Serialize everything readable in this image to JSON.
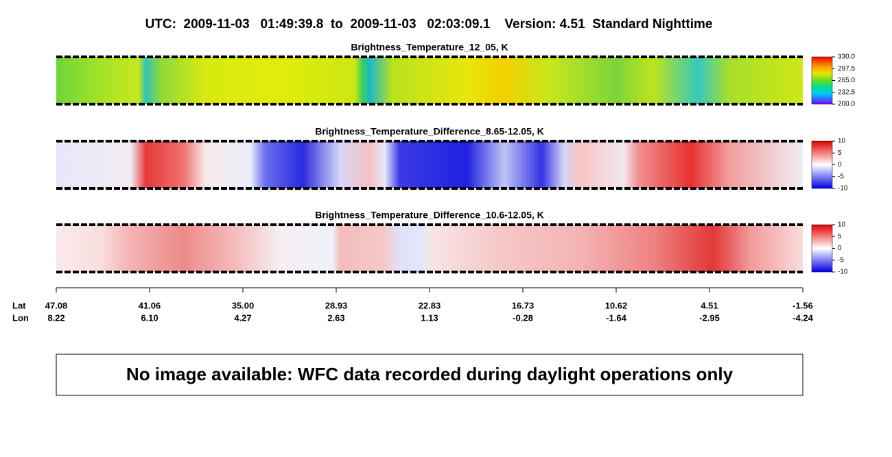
{
  "title": "UTC:  2009-11-03   01:49:39.8  to  2009-11-03   02:03:09.1    Version: 4.51  Standard Nighttime",
  "chart_data": [
    {
      "type": "heatmap",
      "title": "Brightness_Temperature_12_05, K",
      "clim": [
        200,
        330
      ],
      "cticks": [
        {
          "value": 330,
          "label": "330.0"
        },
        297.5,
        {
          "value": 265,
          "label": "265.0"
        },
        232.5,
        {
          "value": 200,
          "label": "200.0"
        }
      ]
    },
    {
      "type": "heatmap",
      "title": "Brightness_Temperature_Difference_8.65-12.05, K",
      "clim": [
        -10,
        10
      ],
      "cticks": [
        10,
        5,
        0,
        -5,
        -10
      ]
    },
    {
      "type": "heatmap",
      "title": "Brightness_Temperature_Difference_10.6-12.05, K",
      "clim": [
        -10,
        10
      ],
      "cticks": [
        10,
        5,
        0,
        -5,
        -10
      ]
    }
  ],
  "x_axis": {
    "lat_label": "Lat",
    "lon_label": "Lon",
    "lat_ticks": [
      47.08,
      41.06,
      {
        "value": 35,
        "label": "35.00"
      },
      28.93,
      22.83,
      16.73,
      10.62,
      4.51,
      -1.56
    ],
    "lon_ticks": [
      8.22,
      {
        "value": 6.1,
        "label": "6.10"
      },
      4.27,
      2.63,
      1.13,
      -0.28,
      -1.64,
      -2.95,
      -4.24
    ]
  },
  "notice": "No image available: WFC data recorded during daylight operations only"
}
